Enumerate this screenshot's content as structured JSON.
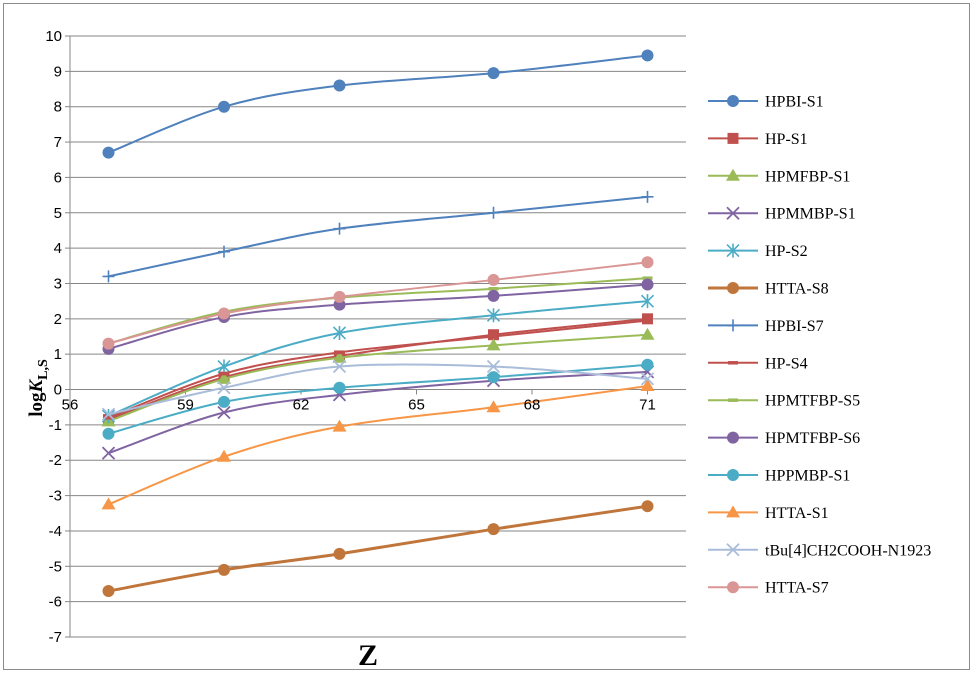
{
  "chart_data": {
    "type": "line",
    "xlabel": "Z",
    "ylabel_main": "log",
    "ylabel_italic": "K",
    "ylabel_sub": "L,S",
    "x_categories": [
      57,
      60,
      63,
      67,
      71
    ],
    "x_ticks": [
      "56",
      "59",
      "62",
      "65",
      "68",
      "71"
    ],
    "x_tick_positions": [
      56,
      59,
      62,
      65,
      68,
      71
    ],
    "y_ticks": [
      -7,
      -6,
      -5,
      -4,
      -3,
      -2,
      -1,
      0,
      1,
      2,
      3,
      4,
      5,
      6,
      7,
      8,
      9,
      10
    ],
    "ylim": [
      -7,
      10
    ],
    "xlim": [
      56,
      72
    ],
    "grid": "horizontal",
    "legend_position": "right",
    "series": [
      {
        "name": "HPBI-S1",
        "color": "#4f81bd",
        "marker": "circle",
        "width": 2,
        "values": [
          6.7,
          8.0,
          8.6,
          8.95,
          9.45
        ]
      },
      {
        "name": "HP-S1",
        "color": "#c0504d",
        "marker": "square",
        "width": 2,
        "values": [
          -0.85,
          0.35,
          0.95,
          1.55,
          2.0
        ]
      },
      {
        "name": "HPMFBP-S1",
        "color": "#9bbb59",
        "marker": "triangle",
        "width": 2,
        "values": [
          -0.9,
          0.3,
          0.9,
          1.25,
          1.55
        ]
      },
      {
        "name": "HPMMBP-S1",
        "color": "#8064a2",
        "marker": "x",
        "width": 2,
        "values": [
          -1.8,
          -0.65,
          -0.15,
          0.25,
          0.5
        ]
      },
      {
        "name": "HP-S2",
        "color": "#4bacc6",
        "marker": "star",
        "width": 2,
        "values": [
          -0.75,
          0.65,
          1.6,
          2.1,
          2.5
        ]
      },
      {
        "name": "HTTA-S8",
        "color": "#c0753a",
        "marker": "circle",
        "width": 3,
        "values": [
          -5.7,
          -5.1,
          -4.65,
          -3.95,
          -3.3
        ]
      },
      {
        "name": "HPBI-S7",
        "color": "#4f81bd",
        "marker": "plus",
        "width": 2,
        "values": [
          3.2,
          3.9,
          4.55,
          5.0,
          5.45
        ]
      },
      {
        "name": "HP-S4",
        "color": "#c0504d",
        "marker": "dash",
        "width": 2,
        "values": [
          -0.8,
          0.45,
          1.05,
          1.5,
          1.95
        ]
      },
      {
        "name": "HPMTFBP-S5",
        "color": "#9bbb59",
        "marker": "dash",
        "width": 2,
        "values": [
          1.3,
          2.2,
          2.6,
          2.85,
          3.15
        ]
      },
      {
        "name": "HPMTFBP-S6",
        "color": "#8064a2",
        "marker": "circle",
        "width": 2,
        "values": [
          1.15,
          2.05,
          2.4,
          2.65,
          2.97
        ]
      },
      {
        "name": "HPPMBP-S1",
        "color": "#4bacc6",
        "marker": "circle",
        "width": 2,
        "values": [
          -1.25,
          -0.35,
          0.05,
          0.35,
          0.7
        ]
      },
      {
        "name": "HTTA-S1",
        "color": "#f79646",
        "marker": "triangle",
        "width": 2,
        "values": [
          -3.25,
          -1.9,
          -1.05,
          -0.5,
          0.1
        ]
      },
      {
        "name": "tBu[4]CH2COOH-N1923",
        "color": "#a9bcd9",
        "marker": "x",
        "width": 2,
        "values": [
          -0.7,
          0.05,
          0.65,
          0.65,
          0.3
        ]
      },
      {
        "name": "HTTA-S7",
        "color": "#d99694",
        "marker": "circle",
        "width": 2,
        "values": [
          1.3,
          2.15,
          2.62,
          3.1,
          3.6
        ]
      }
    ]
  }
}
